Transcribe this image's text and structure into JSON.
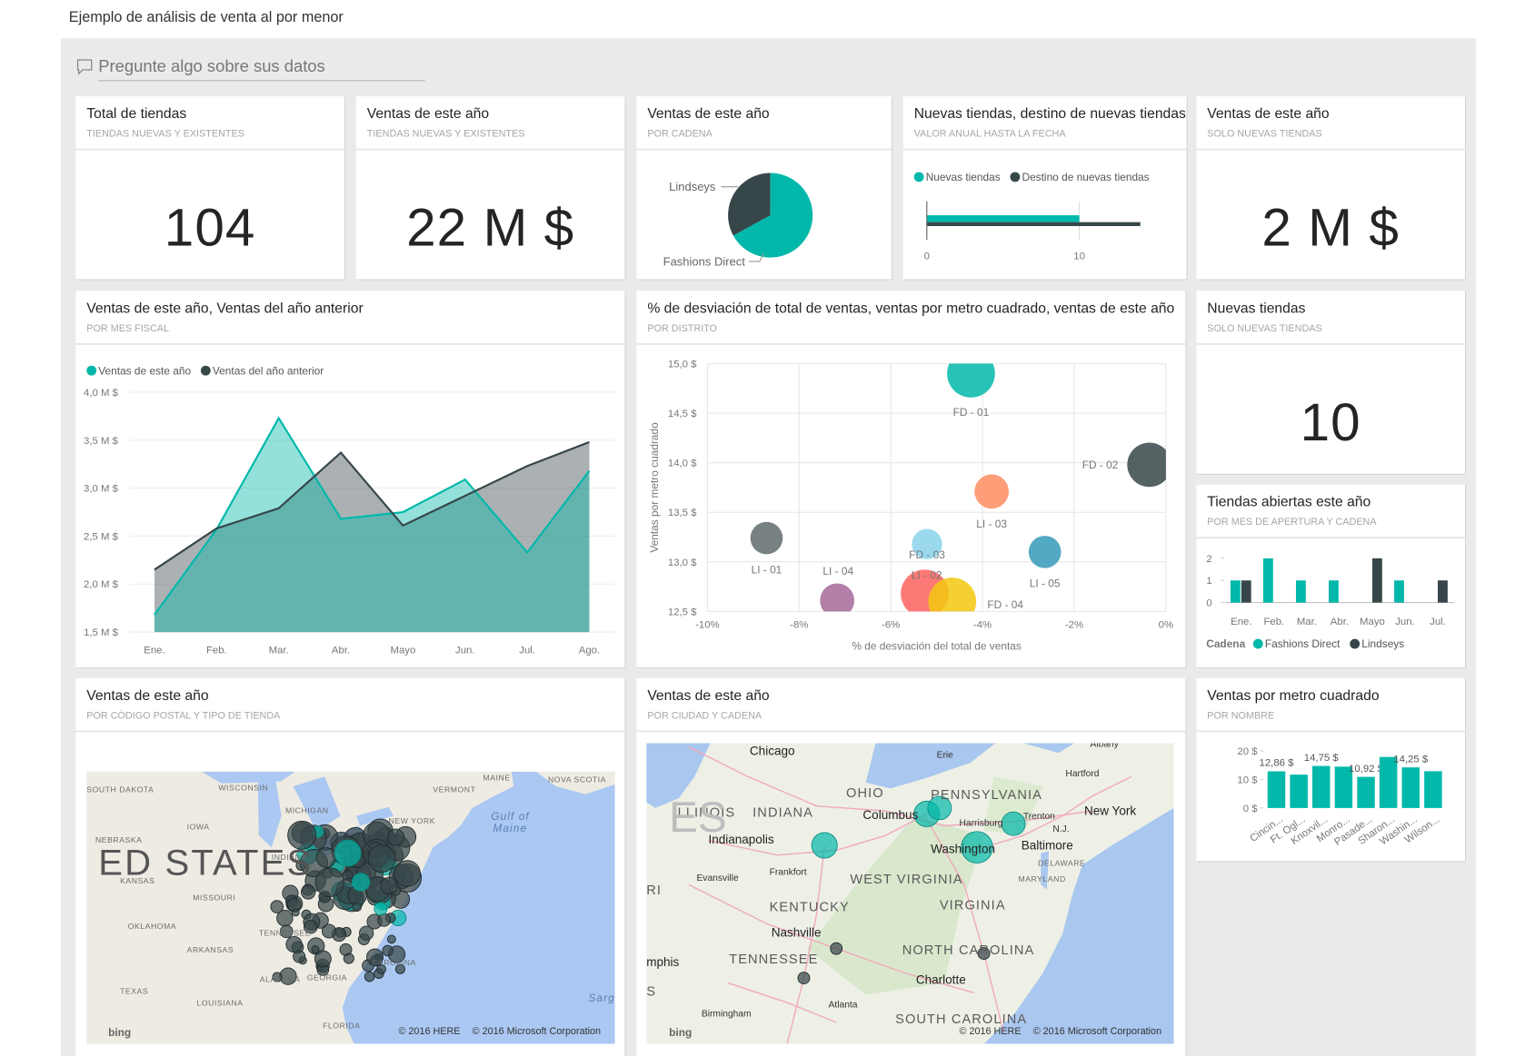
{
  "header": {
    "title": "Ejemplo de análisis de venta al por menor"
  },
  "qa": {
    "placeholder": "Pregunte algo sobre sus datos"
  },
  "chart_data": [
    {
      "type": "card",
      "title": "Total de tiendas",
      "subtitle": "TIENDAS NUEVAS Y EXISTENTES",
      "values": [
        104
      ]
    },
    {
      "type": "card",
      "title": "Ventas de este año",
      "subtitle": "TIENDAS NUEVAS Y EXISTENTES",
      "values": [
        22000000
      ],
      "value_labels": [
        "22 M $"
      ]
    },
    {
      "type": "pie",
      "title": "Ventas de este año",
      "subtitle": "POR CADENA",
      "categories": [
        "Lindseys",
        "Fashions Direct"
      ],
      "values": [
        33,
        67
      ],
      "colors": [
        "#374649",
        "#01b8aa"
      ]
    },
    {
      "type": "bullet",
      "title": "Nuevas tiendas, destino de nuevas tiendas",
      "subtitle": "VALOR ANUAL HASTA LA FECHA",
      "series": [
        {
          "name": "Nuevas tiendas",
          "color": "#01b8aa",
          "values": [
            10
          ]
        },
        {
          "name": "Destino de nuevas tiendas",
          "color": "#374649",
          "values": [
            14
          ]
        }
      ],
      "xlim": [
        0,
        14
      ],
      "xticks": [
        0,
        10
      ]
    },
    {
      "type": "card",
      "title": "Ventas de este año",
      "subtitle": "SOLO NUEVAS TIENDAS",
      "values": [
        2000000
      ],
      "value_labels": [
        "2 M $"
      ]
    },
    {
      "type": "area",
      "title": "Ventas de este año, Ventas del año anterior",
      "subtitle": "POR MES FISCAL",
      "categories": [
        "Ene.",
        "Feb.",
        "Mar.",
        "Abr.",
        "Mayo",
        "Jun.",
        "Jul.",
        "Ago."
      ],
      "series": [
        {
          "name": "Ventas de este año",
          "color": "#01b8aa",
          "values": [
            1680000,
            2570000,
            3730000,
            2680000,
            2750000,
            3090000,
            2330000,
            3180000
          ]
        },
        {
          "name": "Ventas del año anterior",
          "color": "#374649",
          "values": [
            2150000,
            2580000,
            2790000,
            3370000,
            2610000,
            2920000,
            3230000,
            3480000
          ]
        }
      ],
      "ylim": [
        1500000,
        4000000
      ],
      "yticks": [
        {
          "value": 1500000,
          "label": "1,5 M $"
        },
        {
          "value": 2000000,
          "label": "2,0 M $"
        },
        {
          "value": 2500000,
          "label": "2,5 M $"
        },
        {
          "value": 3000000,
          "label": "3,0 M $"
        },
        {
          "value": 3500000,
          "label": "3,5 M $"
        },
        {
          "value": 4000000,
          "label": "4,0 M $"
        }
      ],
      "grid": true
    },
    {
      "type": "scatter",
      "title": "% de desviación de total de ventas, ventas por metro cuadrado, ventas de este año",
      "subtitle": "POR DISTRITO",
      "xlabel": "% de desviación del total de ventas",
      "ylabel": "Ventas por metro cuadrado",
      "categories": [
        "FD - 01",
        "FD - 02",
        "LI - 03",
        "LI - 01",
        "FD - 03",
        "LI - 05",
        "LI - 04",
        "LI - 02",
        "FD - 04"
      ],
      "x": [
        -4.25,
        -0.36,
        -3.8,
        -8.71,
        -5.21,
        -2.64,
        -7.17,
        -5.26,
        -4.66
      ],
      "values": [
        14.9,
        13.98,
        13.71,
        13.24,
        13.18,
        13.1,
        12.61,
        12.68,
        12.6
      ],
      "sizes": [
        3.5,
        3.0,
        1.8,
        1.6,
        1.4,
        1.6,
        1.8,
        3.5,
        3.5
      ],
      "colors": [
        "#01b8aa",
        "#374649",
        "#fd8d62",
        "#5f6b6d",
        "#8ad4eb",
        "#3599b8",
        "#a66999",
        "#fd625e",
        "#f2c80f"
      ],
      "xlim": [
        -10,
        0
      ],
      "xticks": [
        {
          "value": -10,
          "label": "-10%"
        },
        {
          "value": -8,
          "label": "-8%"
        },
        {
          "value": -6,
          "label": "-6%"
        },
        {
          "value": -4,
          "label": "-4%"
        },
        {
          "value": -2,
          "label": "-2%"
        },
        {
          "value": 0,
          "label": "0%"
        }
      ],
      "ylim": [
        12.5,
        15.0
      ],
      "yticks": [
        {
          "value": 12.5,
          "label": "12,5 $"
        },
        {
          "value": 13.0,
          "label": "13,0 $"
        },
        {
          "value": 13.5,
          "label": "13,5 $"
        },
        {
          "value": 14.0,
          "label": "14,0 $"
        },
        {
          "value": 14.5,
          "label": "14,5 $"
        },
        {
          "value": 15.0,
          "label": "15,0 $"
        }
      ],
      "grid": true
    },
    {
      "type": "card",
      "title": "Nuevas tiendas",
      "subtitle": "SOLO NUEVAS TIENDAS",
      "values": [
        10
      ]
    },
    {
      "type": "grouped-bar",
      "title": "Tiendas abiertas este año",
      "subtitle": "POR MES DE APERTURA Y CADENA",
      "categories": [
        "Ene.",
        "Feb.",
        "Mar.",
        "Abr.",
        "Mayo",
        "Jun.",
        "Jul."
      ],
      "legend_title": "Cadena",
      "series": [
        {
          "name": "Fashions Direct",
          "color": "#01b8aa",
          "values": [
            1,
            2,
            1,
            1,
            0,
            1,
            0
          ]
        },
        {
          "name": "Lindseys",
          "color": "#374649",
          "values": [
            1,
            0,
            0,
            0,
            2,
            0,
            1
          ]
        }
      ],
      "ylim": [
        0,
        2
      ],
      "yticks": [
        0,
        1,
        2
      ]
    },
    {
      "type": "map",
      "title": "Ventas de este año",
      "subtitle": "POR CÓDIGO POSTAL Y TIPO DE TIENDA",
      "places": [
        "SOUTH DAKOTA",
        "WISCONSIN",
        "MICHIGAN",
        "VERMONT",
        "MAINE",
        "NOVA SCOTIA",
        "NEW YORK",
        "Gulf of",
        "Maine",
        "NEBRASKA",
        "IOWA",
        "ED STATES",
        "INDIANA",
        "KANSAS",
        "MISSOURI",
        "OKLAHOMA",
        "TENNESSEE",
        "ARKANSAS",
        "ALABAMA",
        "GEORGIA",
        "CAROLINA",
        "TEXAS",
        "LOUISIANA",
        "FLORIDA",
        "Sarg"
      ],
      "logo": "bing",
      "credits": [
        "© 2016 HERE",
        "© 2016 Microsoft Corporation"
      ]
    },
    {
      "type": "map",
      "title": "Ventas de este año",
      "subtitle": "POR CIUDAD Y CADENA",
      "places": [
        "Chicago",
        "Erie",
        "Albany",
        "Hartford",
        "OHIO",
        "PENNSYLVANIA",
        "ILLINOIS",
        "INDIANA",
        "ES",
        "New York",
        "Columbus",
        "Harrisburg",
        "Trenton",
        "N.J.",
        "Indianapolis",
        "Washington",
        "Baltimore",
        "DELAWARE",
        "MARYLAND",
        "Evansville",
        "Frankfort",
        "WEST VIRGINIA",
        "RI",
        "KENTUCKY",
        "VIRGINIA",
        "Nashville",
        "TENNESSEE",
        "NORTH CAROLINA",
        "mphis",
        "Charlotte",
        "S",
        "Birmingham",
        "Atlanta",
        "SOUTH CAROLINA"
      ],
      "logo": "bing",
      "credits": [
        "© 2016 HERE",
        "© 2016 Microsoft Corporation"
      ]
    },
    {
      "type": "bar",
      "title": "Ventas por metro cuadrado",
      "subtitle": "POR NOMBRE",
      "categories": [
        "Cincin...",
        "Ft. Ogl...",
        "Knoxvil...",
        "Monro...",
        "Pasade...",
        "Sharon...",
        "Washin...",
        "Wilson..."
      ],
      "values": [
        12.86,
        11.7,
        14.75,
        14.5,
        10.92,
        17.9,
        14.25,
        12.9
      ],
      "value_labels": [
        "12,86 $",
        null,
        "14,75 $",
        null,
        "10,92 $",
        null,
        "14,25 $",
        null
      ],
      "color": "#01b8aa",
      "ylim": [
        0,
        20
      ],
      "yticks": [
        {
          "value": 0,
          "label": "0 $"
        },
        {
          "value": 10,
          "label": "10 $"
        },
        {
          "value": 20,
          "label": "20 $"
        }
      ]
    }
  ]
}
